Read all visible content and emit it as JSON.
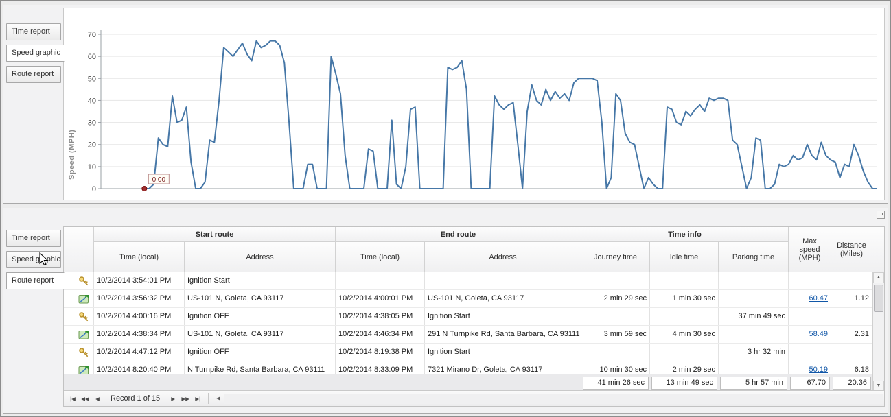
{
  "top_panel": {
    "tabs": [
      {
        "label": "Time report"
      },
      {
        "label": "Speed graphic"
      },
      {
        "label": "Route report"
      }
    ],
    "selected_tab": "Speed graphic",
    "chart_data": {
      "type": "line",
      "title": "",
      "xlabel": "",
      "ylabel": "Speed (MPH)",
      "ylim": [
        0,
        70
      ],
      "yticks": [
        0,
        10,
        20,
        30,
        40,
        50,
        60,
        70
      ],
      "grid": "horizontal-only",
      "legend": "none",
      "line_color": "#4677a7",
      "x_start_frac": 0.056,
      "x_end_frac": 1.0,
      "annotation": {
        "label": "0.00",
        "index": 0,
        "marker_color": "#a03030"
      },
      "values": [
        0,
        0,
        2,
        23,
        20,
        19,
        42,
        30,
        31,
        37,
        12,
        0,
        0,
        3,
        22,
        21,
        40,
        64,
        62,
        60,
        63,
        66,
        61,
        58,
        67,
        64,
        65,
        67,
        67,
        65,
        57,
        30,
        0,
        0,
        0,
        11,
        11,
        0,
        0,
        0,
        60,
        52,
        43,
        15,
        0,
        0,
        0,
        0,
        18,
        17,
        0,
        0,
        0,
        31,
        2,
        0,
        10,
        36,
        37,
        0,
        0,
        0,
        0,
        0,
        0,
        55,
        54,
        55,
        58,
        45,
        0,
        0,
        0,
        0,
        0,
        42,
        38,
        36,
        38,
        39,
        20,
        0,
        35,
        47,
        40,
        38,
        45,
        40,
        44,
        41,
        43,
        40,
        48,
        50,
        50,
        50,
        50,
        49,
        30,
        0,
        5,
        43,
        40,
        25,
        21,
        20,
        10,
        0,
        5,
        2,
        0,
        0,
        37,
        36,
        30,
        29,
        35,
        33,
        36,
        38,
        35,
        41,
        40,
        41,
        41,
        40,
        22,
        20,
        10,
        0,
        5,
        23,
        22,
        0,
        0,
        2,
        11,
        10,
        11,
        15,
        13,
        14,
        20,
        15,
        13,
        21,
        15,
        13,
        12,
        5,
        11,
        10,
        20,
        15,
        8,
        3,
        0,
        0
      ]
    }
  },
  "bottom_panel": {
    "tabs": [
      {
        "label": "Time report"
      },
      {
        "label": "Speed graphic"
      },
      {
        "label": "Route report"
      }
    ],
    "selected_tab": "Route report",
    "table": {
      "groups": [
        {
          "label": "Start route"
        },
        {
          "label": "End route"
        },
        {
          "label": "Time info"
        }
      ],
      "columns": {
        "start_time": "Time (local)",
        "start_address": "Address",
        "end_time": "Time (local)",
        "end_address": "Address",
        "journey": "Journey time",
        "idle": "Idle time",
        "parking": "Parking time",
        "max_speed": "Max speed (MPH)",
        "distance": "Distance (Miles)"
      },
      "rows": [
        {
          "icon": "key",
          "start_time": "10/2/2014 3:54:01 PM",
          "start_address": "Ignition Start",
          "end_time": "",
          "end_address": "",
          "journey": "",
          "idle": "",
          "parking": "",
          "max_speed": "",
          "distance": ""
        },
        {
          "icon": "route",
          "start_time": "10/2/2014 3:56:32 PM",
          "start_address": "US-101 N, Goleta, CA 93117",
          "end_time": "10/2/2014 4:00:01 PM",
          "end_address": "US-101 N, Goleta, CA 93117",
          "journey": "2 min 29 sec",
          "idle": "1 min 30 sec",
          "parking": "",
          "max_speed": "60.47",
          "distance": "1.12"
        },
        {
          "icon": "key",
          "start_time": "10/2/2014 4:00:16 PM",
          "start_address": "Ignition OFF",
          "end_time": "10/2/2014 4:38:05 PM",
          "end_address": "Ignition Start",
          "journey": "",
          "idle": "",
          "parking": "37 min 49 sec",
          "max_speed": "",
          "distance": ""
        },
        {
          "icon": "route",
          "start_time": "10/2/2014 4:38:34 PM",
          "start_address": "US-101 N, Goleta, CA 93117",
          "end_time": "10/2/2014 4:46:34 PM",
          "end_address": "291 N Turnpike Rd, Santa Barbara, CA 93111",
          "journey": "3 min 59 sec",
          "idle": "4 min 30 sec",
          "parking": "",
          "max_speed": "58.49",
          "distance": "2.31"
        },
        {
          "icon": "key",
          "start_time": "10/2/2014 4:47:12 PM",
          "start_address": "Ignition OFF",
          "end_time": "10/2/2014 8:19:38 PM",
          "end_address": "Ignition Start",
          "journey": "",
          "idle": "",
          "parking": "3 hr 32 min",
          "max_speed": "",
          "distance": ""
        },
        {
          "icon": "route",
          "start_time": "10/2/2014 8:20:40 PM",
          "start_address": "N Turnpike Rd, Santa Barbara, CA 93111",
          "end_time": "10/2/2014 8:33:09 PM",
          "end_address": "7321 Mirano Dr, Goleta, CA 93117",
          "journey": "10 min 30 sec",
          "idle": "2 min 29 sec",
          "parking": "",
          "max_speed": "50.19",
          "distance": "6.18"
        }
      ],
      "summary": {
        "journey": "41 min 26 sec",
        "idle": "13 min 49 sec",
        "parking": "5 hr 57 min",
        "max_speed": "67.70",
        "distance": "20.36"
      }
    },
    "pager": {
      "buttons_left": [
        "|◀",
        "◀◀",
        "◀"
      ],
      "record_text": "Record 1 of 15",
      "buttons_right": [
        "▶",
        "▶▶",
        "▶|"
      ],
      "hscroll_left": "◀"
    },
    "scrollbar": {
      "up": "▲",
      "down": "▼"
    }
  }
}
